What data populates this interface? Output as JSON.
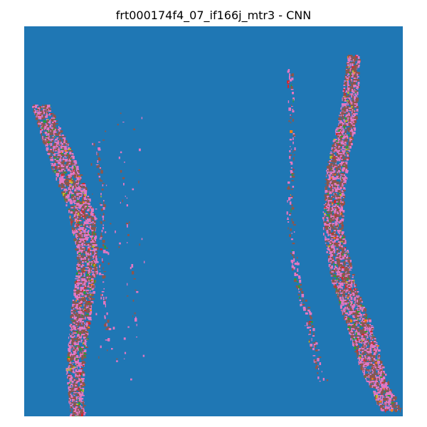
{
  "title": "frt000174f4_07_if166j_mtr3 - CNN",
  "colors": {
    "background": "#1f77b4",
    "brown": "#8c564b",
    "pink": "#e377c2",
    "green": "#2ca02c",
    "red": "#d62728",
    "olive": "#bcbd22",
    "orange": "#ff7f0e"
  },
  "image_type": "classification map"
}
